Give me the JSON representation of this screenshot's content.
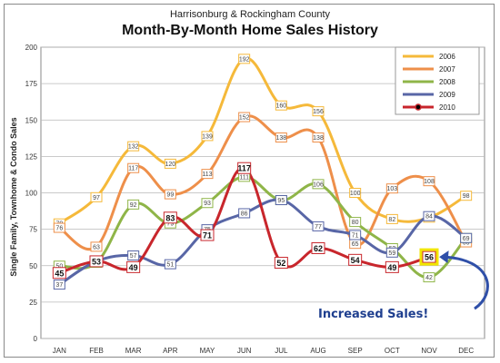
{
  "chart_data": {
    "type": "line",
    "subtitle": "Harrisonburg & Rockingham County",
    "title": "Month-By-Month Home Sales History",
    "ylabel": "Single Family, Townhome & Condo Sales",
    "xlabel": "",
    "ylim": [
      0,
      200
    ],
    "yticks": [
      0,
      25,
      50,
      75,
      100,
      125,
      150,
      175,
      200
    ],
    "grid": true,
    "legend_position": "top-right",
    "categories": [
      "JAN",
      "FEB",
      "MAR",
      "APR",
      "MAY",
      "JUN",
      "JUL",
      "AUG",
      "SEP",
      "OCT",
      "NOV",
      "DEC"
    ],
    "series": [
      {
        "name": "2006",
        "color": "#f5b93a",
        "values": [
          79,
          97,
          132,
          120,
          139,
          192,
          160,
          156,
          100,
          82,
          83,
          98
        ]
      },
      {
        "name": "2007",
        "color": "#ee8f4a",
        "values": [
          76,
          63,
          117,
          99,
          113,
          152,
          138,
          138,
          65,
          103,
          108,
          66
        ]
      },
      {
        "name": "2008",
        "color": "#8fb548",
        "values": [
          50,
          52,
          92,
          79,
          93,
          111,
          95,
          106,
          80,
          62,
          42,
          69
        ]
      },
      {
        "name": "2009",
        "color": "#5866a6",
        "values": [
          37,
          53,
          57,
          51,
          75,
          86,
          95,
          77,
          71,
          59,
          84,
          69
        ]
      },
      {
        "name": "2010",
        "color": "#c8262c",
        "values": [
          45,
          53,
          49,
          83,
          71,
          117,
          52,
          62,
          54,
          49,
          56,
          null
        ]
      }
    ],
    "annotation": {
      "text": "Increased Sales!",
      "target_series": "2010",
      "target_category": "NOV",
      "color": "#2f4fa8"
    }
  }
}
